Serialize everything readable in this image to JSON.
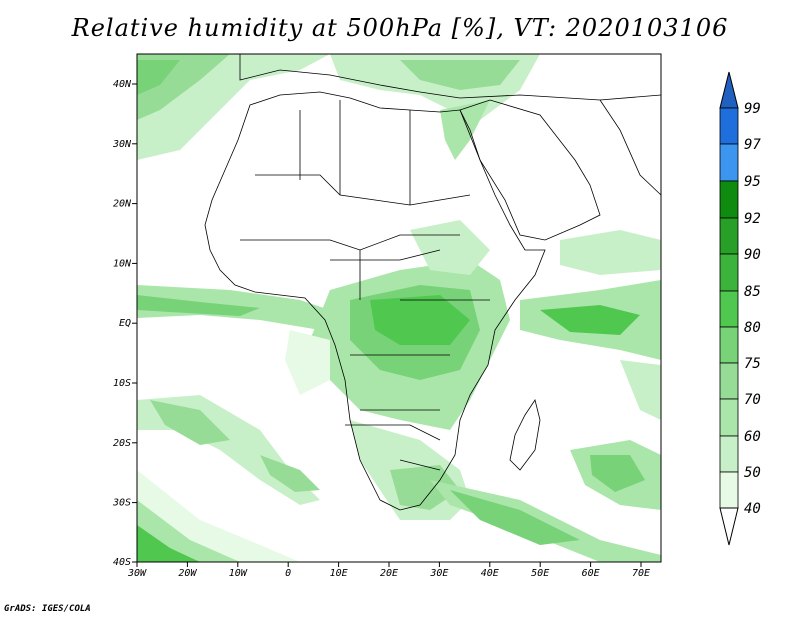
{
  "title": "Relative humidity at 500hPa [%], VT: 2020103106",
  "credit": "GrADS: IGES/COLA",
  "map": {
    "lat_ticks": [
      "40N",
      "30N",
      "20N",
      "10N",
      "EQ",
      "10S",
      "20S",
      "30S",
      "40S"
    ],
    "lon_ticks": [
      "30W",
      "20W",
      "10W",
      "0",
      "10E",
      "20E",
      "30E",
      "40E",
      "50E",
      "60E",
      "70E"
    ]
  },
  "colorbar": {
    "levels": [
      "99",
      "97",
      "95",
      "92",
      "90",
      "85",
      "80",
      "75",
      "70",
      "60",
      "50",
      "40"
    ],
    "colors": [
      "#1e6edc",
      "#3c96f0",
      "#0f8c0f",
      "#28a028",
      "#3cb43c",
      "#50c850",
      "#78d278",
      "#96dc96",
      "#aae6aa",
      "#c8f0c8",
      "#e6fae6"
    ],
    "top_arrow_color": "#2060c0",
    "bottom_arrow_color": "#ffffff"
  }
}
